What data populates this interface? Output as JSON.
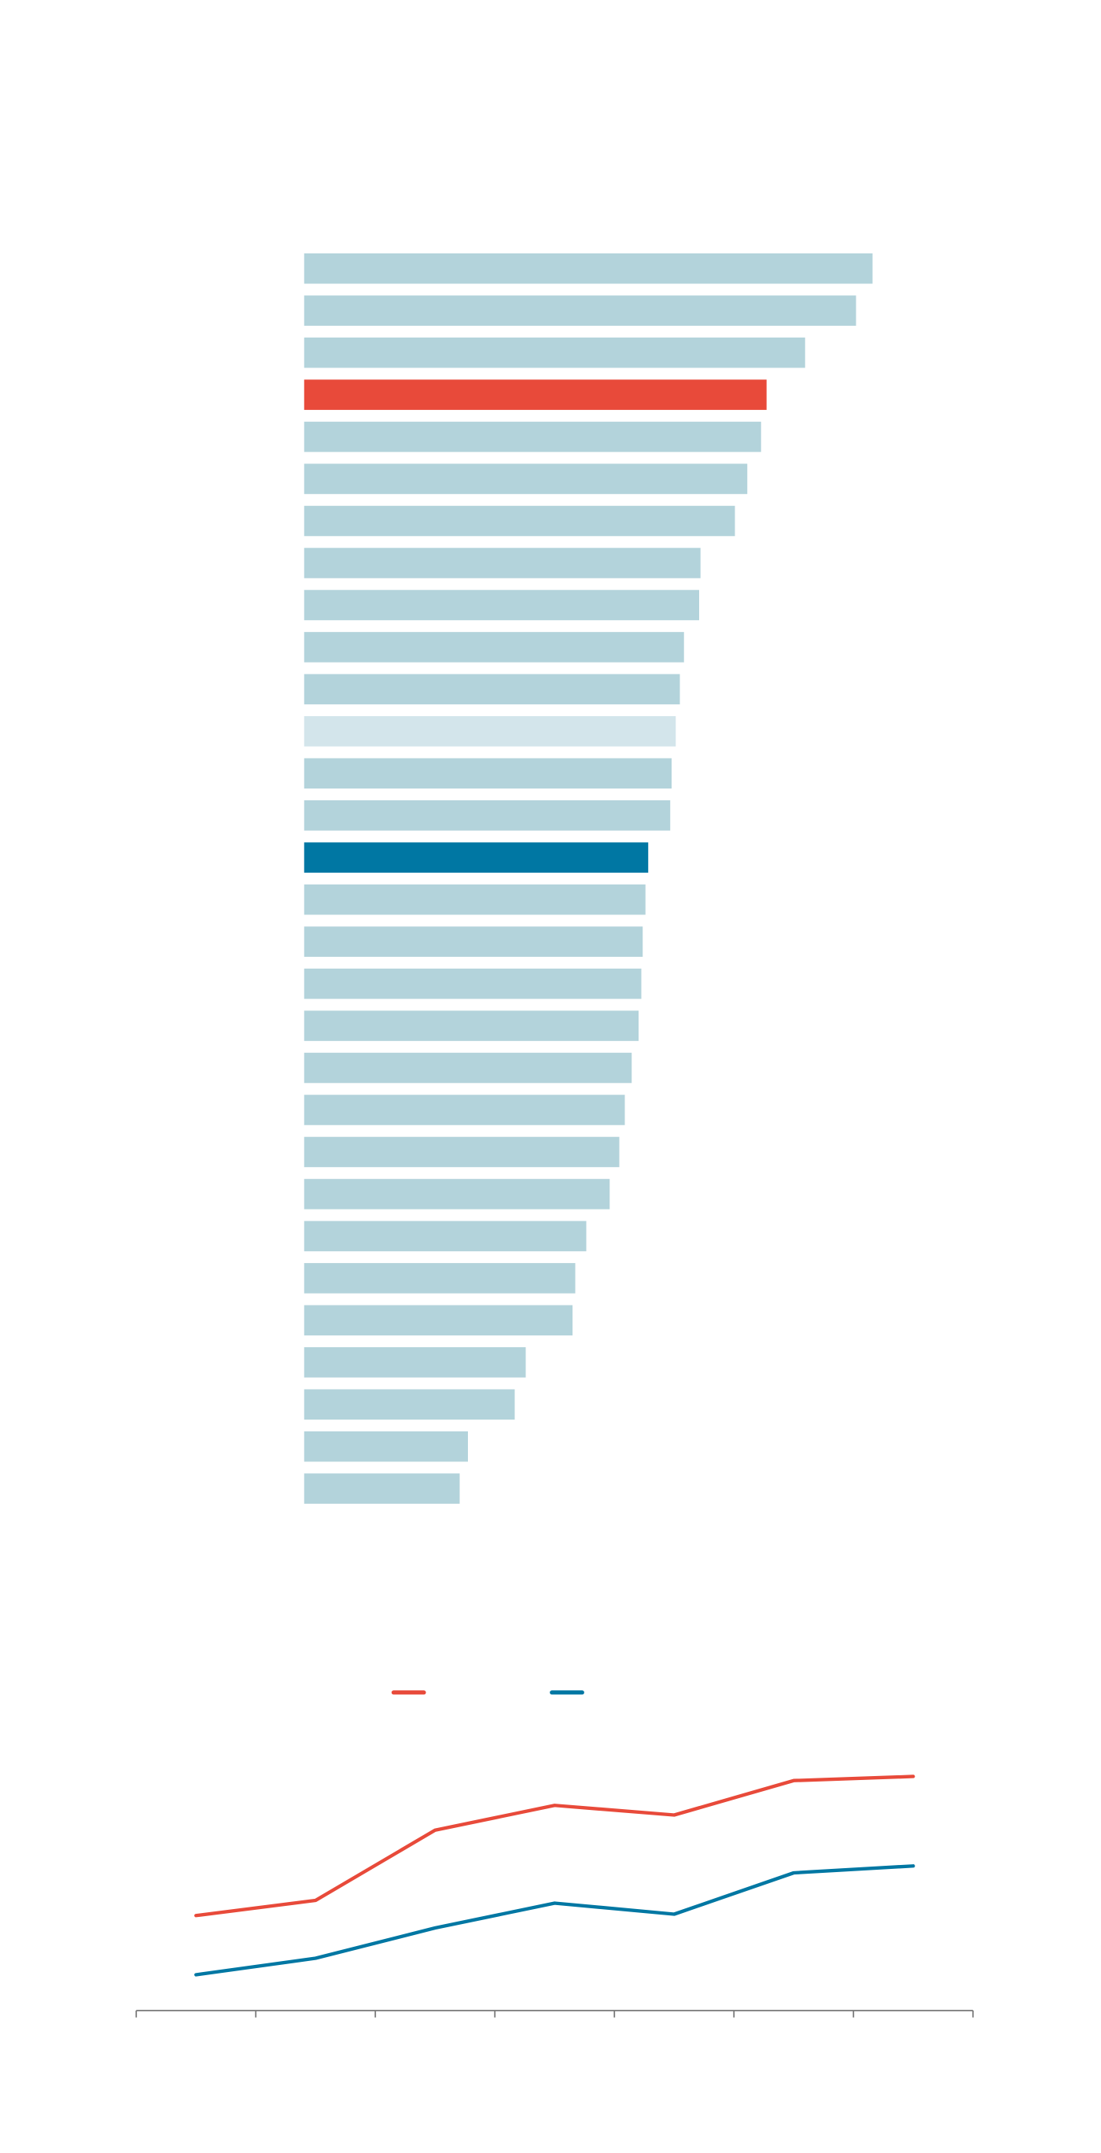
{
  "chart_data": [
    {
      "type": "bar",
      "orientation": "horizontal",
      "values": [
        413,
        401,
        364,
        336,
        332,
        322,
        313,
        288,
        287,
        276,
        273,
        270,
        267,
        266,
        250,
        248,
        246,
        245,
        243,
        238,
        233,
        229,
        222,
        205,
        197,
        195,
        161,
        153,
        119,
        113
      ],
      "colors": [
        "#b3d3db",
        "#b3d3db",
        "#b3d3db",
        "#e84a3a",
        "#b3d3db",
        "#b3d3db",
        "#b3d3db",
        "#b3d3db",
        "#b3d3db",
        "#b3d3db",
        "#b3d3db",
        "#d3e5eb",
        "#b3d3db",
        "#b3d3db",
        "#0077a3",
        "#b3d3db",
        "#b3d3db",
        "#b3d3db",
        "#b3d3db",
        "#b3d3db",
        "#b3d3db",
        "#b3d3db",
        "#b3d3db",
        "#b3d3db",
        "#b3d3db",
        "#b3d3db",
        "#b3d3db",
        "#b3d3db",
        "#b3d3db",
        "#b3d3db"
      ],
      "xlim": [
        0,
        413
      ]
    },
    {
      "type": "line",
      "categories": [
        null,
        null,
        null,
        null,
        null,
        null,
        null
      ],
      "series": [
        {
          "color": "#e84a3a",
          "values": [
            69,
            80,
            131,
            149,
            142,
            167,
            170
          ]
        },
        {
          "color": "#0077a3",
          "values": [
            26,
            38,
            60,
            78,
            70,
            100,
            105
          ]
        }
      ],
      "ylim": [
        0,
        180
      ]
    }
  ]
}
